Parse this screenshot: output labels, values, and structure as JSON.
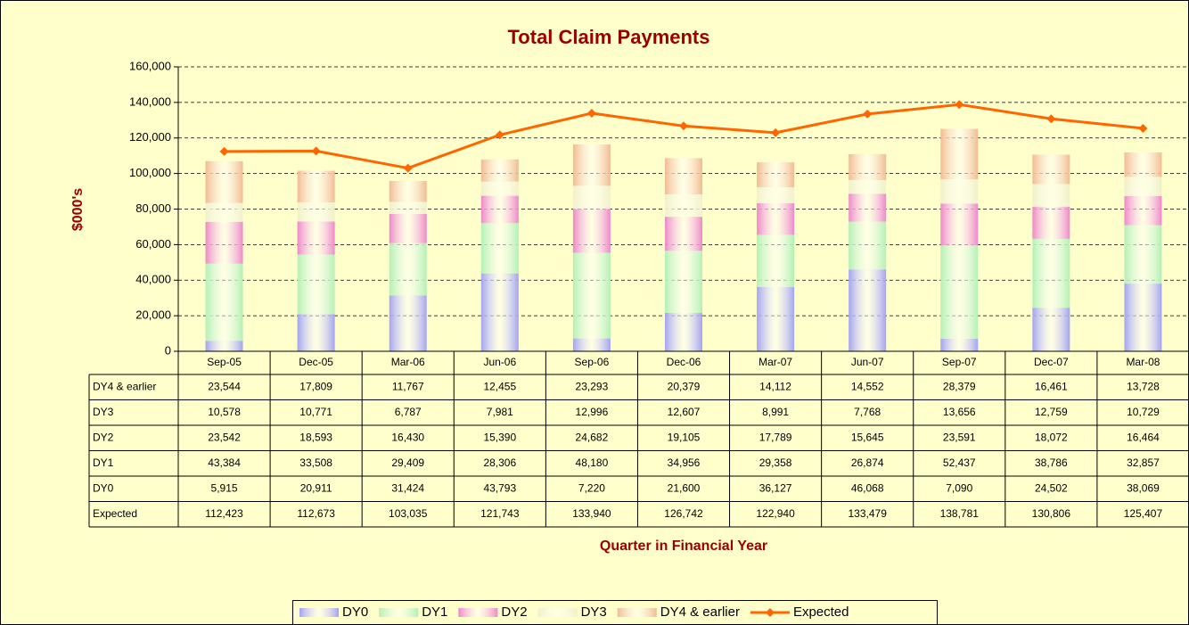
{
  "chart_data": {
    "type": "bar",
    "stacked": true,
    "title": "Total Claim Payments",
    "y_label": "$000's",
    "x_label": "Quarter in Financial Year",
    "categories": [
      "Sep-05",
      "Dec-05",
      "Mar-06",
      "Jun-06",
      "Sep-06",
      "Dec-06",
      "Mar-07",
      "Jun-07",
      "Sep-07",
      "Dec-07",
      "Mar-08"
    ],
    "ylim": [
      0,
      160000
    ],
    "yticks": [
      0,
      {
        "value": 20000,
        "label": "20,000"
      },
      {
        "value": 40000,
        "label": "40,000"
      },
      {
        "value": 60000,
        "label": "60,000"
      },
      {
        "value": 80000,
        "label": "80,000"
      },
      {
        "value": 100000,
        "label": "100,000"
      },
      {
        "value": 120000,
        "label": "120,000"
      },
      {
        "value": 140000,
        "label": "140,000"
      },
      {
        "value": 160000,
        "label": "160,000"
      }
    ],
    "grid": true,
    "legend": "bottom",
    "series": [
      {
        "name": "DY0",
        "color": "#a3a3f0",
        "values": [
          5915,
          20911,
          31424,
          43793,
          7220,
          21600,
          36127,
          46068,
          7090,
          24502,
          38069
        ],
        "value_labels": [
          "5,915",
          "20,911",
          "31,424",
          "43,793",
          "7,220",
          "21,600",
          "36,127",
          "46,068",
          "7,090",
          "24,502",
          "38,069"
        ]
      },
      {
        "name": "DY1",
        "color": "#b3f0b3",
        "values": [
          43384,
          33508,
          29409,
          28306,
          48180,
          34956,
          29358,
          26874,
          52437,
          38786,
          32857
        ],
        "value_labels": [
          "43,384",
          "33,508",
          "29,409",
          "28,306",
          "48,180",
          "34,956",
          "29,358",
          "26,874",
          "52,437",
          "38,786",
          "32,857"
        ]
      },
      {
        "name": "DY2",
        "color": "#ee88c8",
        "values": [
          23542,
          18593,
          16430,
          15390,
          24682,
          19105,
          17789,
          15645,
          23591,
          18072,
          16464
        ],
        "value_labels": [
          "23,542",
          "18,593",
          "16,430",
          "15,390",
          "24,682",
          "19,105",
          "17,789",
          "15,645",
          "23,591",
          "18,072",
          "16,464"
        ]
      },
      {
        "name": "DY3",
        "color": "#f0f0c8",
        "values": [
          10578,
          10771,
          6787,
          7981,
          12996,
          12607,
          8991,
          7768,
          13656,
          12759,
          10729
        ],
        "value_labels": [
          "10,578",
          "10,771",
          "6,787",
          "7,981",
          "12,996",
          "12,607",
          "8,991",
          "7,768",
          "13,656",
          "12,759",
          "10,729"
        ]
      },
      {
        "name": "DY4 & earlier",
        "color": "#f2bb90",
        "values": [
          23544,
          17809,
          11767,
          12455,
          23293,
          20379,
          14112,
          14552,
          28379,
          16461,
          13728
        ],
        "value_labels": [
          "23,544",
          "17,809",
          "11,767",
          "12,455",
          "23,293",
          "20,379",
          "14,112",
          "14,552",
          "28,379",
          "16,461",
          "13,728"
        ]
      },
      {
        "name": "Expected",
        "type": "line",
        "color": "#ff6600",
        "values": [
          112423,
          112673,
          103035,
          121743,
          133940,
          126742,
          122940,
          133479,
          138781,
          130806,
          125407
        ],
        "value_labels": [
          "112,423",
          "112,673",
          "103,035",
          "121,743",
          "133,940",
          "126,742",
          "122,940",
          "133,479",
          "138,781",
          "130,806",
          "125,407"
        ]
      }
    ]
  }
}
